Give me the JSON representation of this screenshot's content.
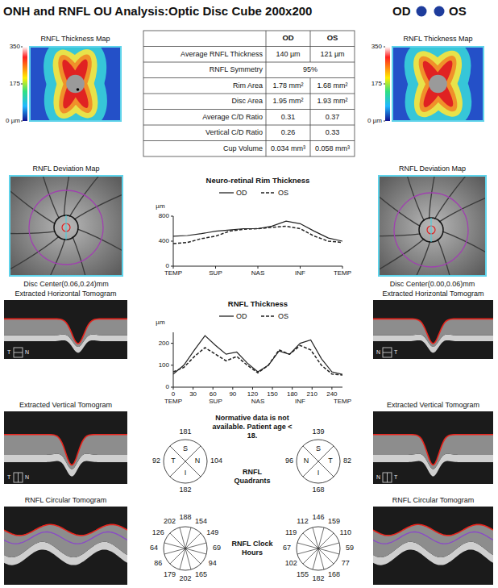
{
  "header": {
    "title": "ONH and RNFL OU Analysis:Optic Disc Cube 200x200",
    "eyes": [
      "OD",
      "OS"
    ]
  },
  "table": {
    "columns": [
      "OD",
      "OS"
    ],
    "rows": [
      {
        "label": "Average RNFL Thickness",
        "values": [
          "140 µm",
          "121 µm"
        ]
      },
      {
        "label": "RNFL Symmetry",
        "values": [
          "95%"
        ]
      },
      {
        "label": "Rim Area",
        "values": [
          "1.78 mm²",
          "1.68 mm²"
        ]
      },
      {
        "label": "Disc Area",
        "values": [
          "1.95 mm²",
          "1.93 mm²"
        ]
      },
      {
        "label": "Average C/D Ratio",
        "values": [
          "0.31",
          "0.37"
        ]
      },
      {
        "label": "Vertical C/D Ratio",
        "values": [
          "0.26",
          "0.33"
        ]
      },
      {
        "label": "Cup Volume",
        "values": [
          "0.034 mm³",
          "0.058 mm³"
        ]
      }
    ]
  },
  "panels": [
    {
      "thickness_map": {
        "title": "RNFL Thickness Map",
        "colorbar_range": [
          0,
          350
        ],
        "colorbar_ticks": [
          350,
          175,
          {
            "value": 0,
            "label": "0 µm"
          }
        ]
      },
      "deviation_map": {
        "title": "RNFL Deviation Map",
        "disc_center": "Disc Center(0.06,0.24)mm"
      },
      "horizontal_tomogram": {
        "title": "Extracted Horizontal Tomogram",
        "orientation": [
          "T",
          "N"
        ]
      },
      "vertical_tomogram": {
        "title": "Extracted Vertical Tomogram",
        "orientation": [
          "T",
          "N"
        ]
      },
      "circular_tomogram": {
        "title": "RNFL Circular Tomogram"
      }
    },
    {
      "thickness_map": {
        "title": "RNFL Thickness Map",
        "colorbar_range": [
          0,
          350
        ],
        "colorbar_ticks": [
          350,
          175,
          {
            "value": 0,
            "label": "0 µm"
          }
        ]
      },
      "deviation_map": {
        "title": "RNFL Deviation Map",
        "disc_center": "Disc Center(0.00,0.06)mm"
      },
      "horizontal_tomogram": {
        "title": "Extracted Horizontal Tomogram",
        "orientation": [
          "N",
          "T"
        ]
      },
      "vertical_tomogram": {
        "title": "Extracted Vertical Tomogram",
        "orientation": [
          "N",
          "T"
        ]
      },
      "circular_tomogram": {
        "title": "RNFL Circular Tomogram"
      }
    }
  ],
  "chart_data": [
    {
      "type": "line",
      "title": "Neuro-retinal Rim Thickness",
      "ylabel": "µm",
      "categories": [
        "TEMP",
        null,
        null,
        "SUP",
        null,
        null,
        "NAS",
        null,
        null,
        "INF",
        null,
        null,
        "TEMP"
      ],
      "series": [
        {
          "name": "OD",
          "color": "#222222",
          "line_style": "solid",
          "values": [
            480,
            490,
            520,
            560,
            580,
            600,
            600,
            640,
            720,
            680,
            560,
            450,
            400
          ]
        },
        {
          "name": "OS",
          "color": "#222222",
          "line_style": "dashed",
          "values": [
            360,
            380,
            440,
            480,
            560,
            590,
            600,
            620,
            640,
            600,
            480,
            400,
            380
          ]
        }
      ],
      "ylim": [
        0,
        800
      ],
      "yticks": [
        0,
        400,
        800
      ],
      "grid": false,
      "legend": "top"
    },
    {
      "type": "line",
      "title": "RNFL Thickness",
      "ylabel": "µm",
      "x": [
        0,
        16,
        32,
        48,
        64,
        80,
        96,
        112,
        128,
        144,
        160,
        176,
        192,
        208,
        224,
        240,
        256
      ],
      "series": [
        {
          "name": "OD",
          "color": "#222222",
          "line_style": "solid",
          "values": [
            60,
            100,
            170,
            235,
            190,
            150,
            160,
            110,
            70,
            100,
            165,
            150,
            200,
            215,
            130,
            70,
            58
          ]
        },
        {
          "name": "OS",
          "color": "#222222",
          "line_style": "dashed",
          "values": [
            70,
            90,
            140,
            180,
            150,
            120,
            140,
            100,
            65,
            100,
            170,
            150,
            190,
            170,
            100,
            60,
            55
          ]
        }
      ],
      "xlim": [
        0,
        256
      ],
      "xticks": [
        0,
        30,
        60,
        90,
        120,
        150,
        180,
        210,
        240
      ],
      "region_ticks": [
        {
          "value": 0,
          "label": "TEMP"
        },
        {
          "value": 64,
          "label": "SUP"
        },
        {
          "value": 128,
          "label": "NAS"
        },
        {
          "value": 192,
          "label": "INF"
        },
        {
          "value": 256,
          "label": "TEMP"
        }
      ],
      "ylim": [
        0,
        250
      ],
      "yticks": [
        0,
        100,
        200
      ],
      "grid": false,
      "legend": "top"
    }
  ],
  "quadrants": {
    "title": "RNFL Quadrants",
    "note": "Normative data is not available. Patient age < 18.",
    "eyes": [
      {
        "sectors": [
          {
            "label": "S",
            "value": 181
          },
          {
            "label": "N",
            "value": 104
          },
          {
            "label": "I",
            "value": 182
          },
          {
            "label": "T",
            "value": 92
          }
        ]
      },
      {
        "sectors": [
          {
            "label": "S",
            "value": 139
          },
          {
            "label": "T",
            "value": 82
          },
          {
            "label": "I",
            "value": 168
          },
          {
            "label": "N",
            "value": 96
          }
        ]
      }
    ]
  },
  "clock_hours": {
    "title": "RNFL Clock Hours",
    "eyes": [
      {
        "values": [
          188,
          154,
          149,
          69,
          94,
          165,
          202,
          179,
          86,
          64,
          126,
          202
        ]
      },
      {
        "values": [
          146,
          159,
          110,
          59,
          77,
          168,
          182,
          155,
          102,
          67,
          119,
          112
        ]
      }
    ]
  }
}
